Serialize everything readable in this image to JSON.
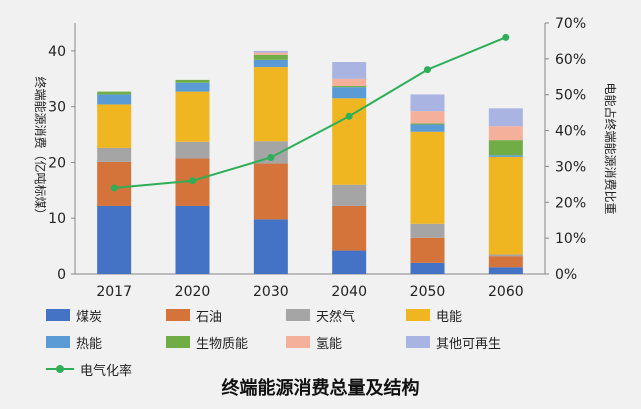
{
  "chart_data": {
    "type": "bar",
    "stacked": true,
    "categories": [
      "2017",
      "2020",
      "2030",
      "2040",
      "2050",
      "2060"
    ],
    "series": [
      {
        "name": "煤炭",
        "color": "#4472c4",
        "values": [
          12.2,
          12.2,
          9.8,
          4.2,
          2.0,
          1.2
        ]
      },
      {
        "name": "石油",
        "color": "#d4733a",
        "values": [
          7.9,
          8.5,
          10.0,
          8.0,
          4.5,
          2.0
        ]
      },
      {
        "name": "天然气",
        "color": "#a5a5a5",
        "values": [
          2.5,
          3.0,
          4.0,
          3.8,
          2.5,
          0.3
        ]
      },
      {
        "name": "电能",
        "color": "#f0b622",
        "values": [
          7.8,
          9.0,
          13.3,
          15.5,
          16.5,
          17.5
        ]
      },
      {
        "name": "热能",
        "color": "#5b9bd5",
        "values": [
          1.8,
          1.6,
          1.3,
          2.0,
          1.3,
          0.3
        ]
      },
      {
        "name": "生物质能",
        "color": "#70ad47",
        "values": [
          0.5,
          0.5,
          0.9,
          0.2,
          0.2,
          2.7
        ]
      },
      {
        "name": "氢能",
        "color": "#f4b09a",
        "values": [
          0.0,
          0.0,
          0.4,
          1.3,
          2.2,
          2.5
        ]
      },
      {
        "name": "其他可再生",
        "color": "#a9b4e3",
        "values": [
          0.0,
          0.0,
          0.3,
          3.0,
          3.0,
          3.2
        ]
      }
    ],
    "line_series": {
      "name": "电气化率",
      "color": "#2eaf57",
      "axis": "right",
      "values": [
        24,
        26,
        32.5,
        44,
        57,
        66
      ]
    },
    "ylabel": "终端能源消费（亿吨标煤）",
    "y2label": "电能占终端能源消费比重",
    "ylim": [
      0,
      45
    ],
    "yticks": [
      0,
      10,
      20,
      30,
      40
    ],
    "y2lim": [
      0,
      70
    ],
    "y2ticks": [
      "0%",
      "10%",
      "20%",
      "30%",
      "40%",
      "50%",
      "60%",
      "70%"
    ],
    "legend_position": "bottom",
    "grid": false
  },
  "caption": "终端能源消费总量及结构"
}
